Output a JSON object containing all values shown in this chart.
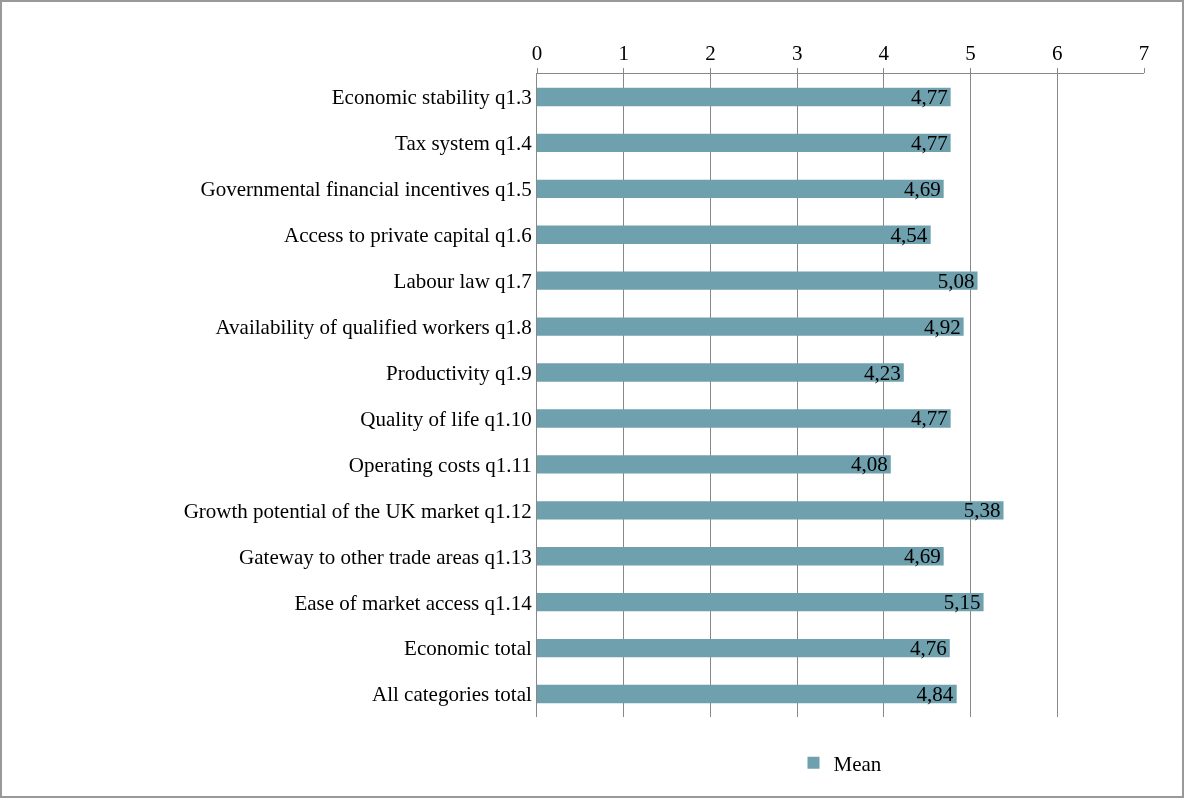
{
  "chart_data": {
    "type": "bar",
    "orientation": "horizontal",
    "categories": [
      "Economic stability q1.3",
      "Tax system q1.4",
      "Governmental financial incentives q1.5",
      "Access to private capital q1.6",
      "Labour law q1.7",
      "Availability of qualified workers q1.8",
      "Productivity q1.9",
      "Quality of life q1.10",
      "Operating costs q1.11",
      "Growth potential of the UK market q1.12",
      "Gateway to other trade areas q1.13",
      "Ease of market access q1.14",
      "Economic total",
      "All categories total"
    ],
    "series": [
      {
        "name": "Mean",
        "color": "#6fa0ae",
        "values": [
          4.77,
          4.77,
          4.69,
          4.54,
          5.08,
          4.92,
          4.23,
          4.77,
          4.08,
          5.38,
          4.69,
          5.15,
          4.76,
          4.84
        ],
        "value_labels": [
          "4,77",
          "4,77",
          "4,69",
          "4,54",
          "5,08",
          "4,92",
          "4,23",
          "4,77",
          "4,08",
          "5,38",
          "4,69",
          "5,15",
          "4,76",
          "4,84"
        ]
      }
    ],
    "xlim": [
      0,
      7
    ],
    "xticks": [
      0,
      1,
      2,
      3,
      4,
      5,
      6,
      7
    ],
    "grid": "x",
    "legend": "bottom"
  }
}
